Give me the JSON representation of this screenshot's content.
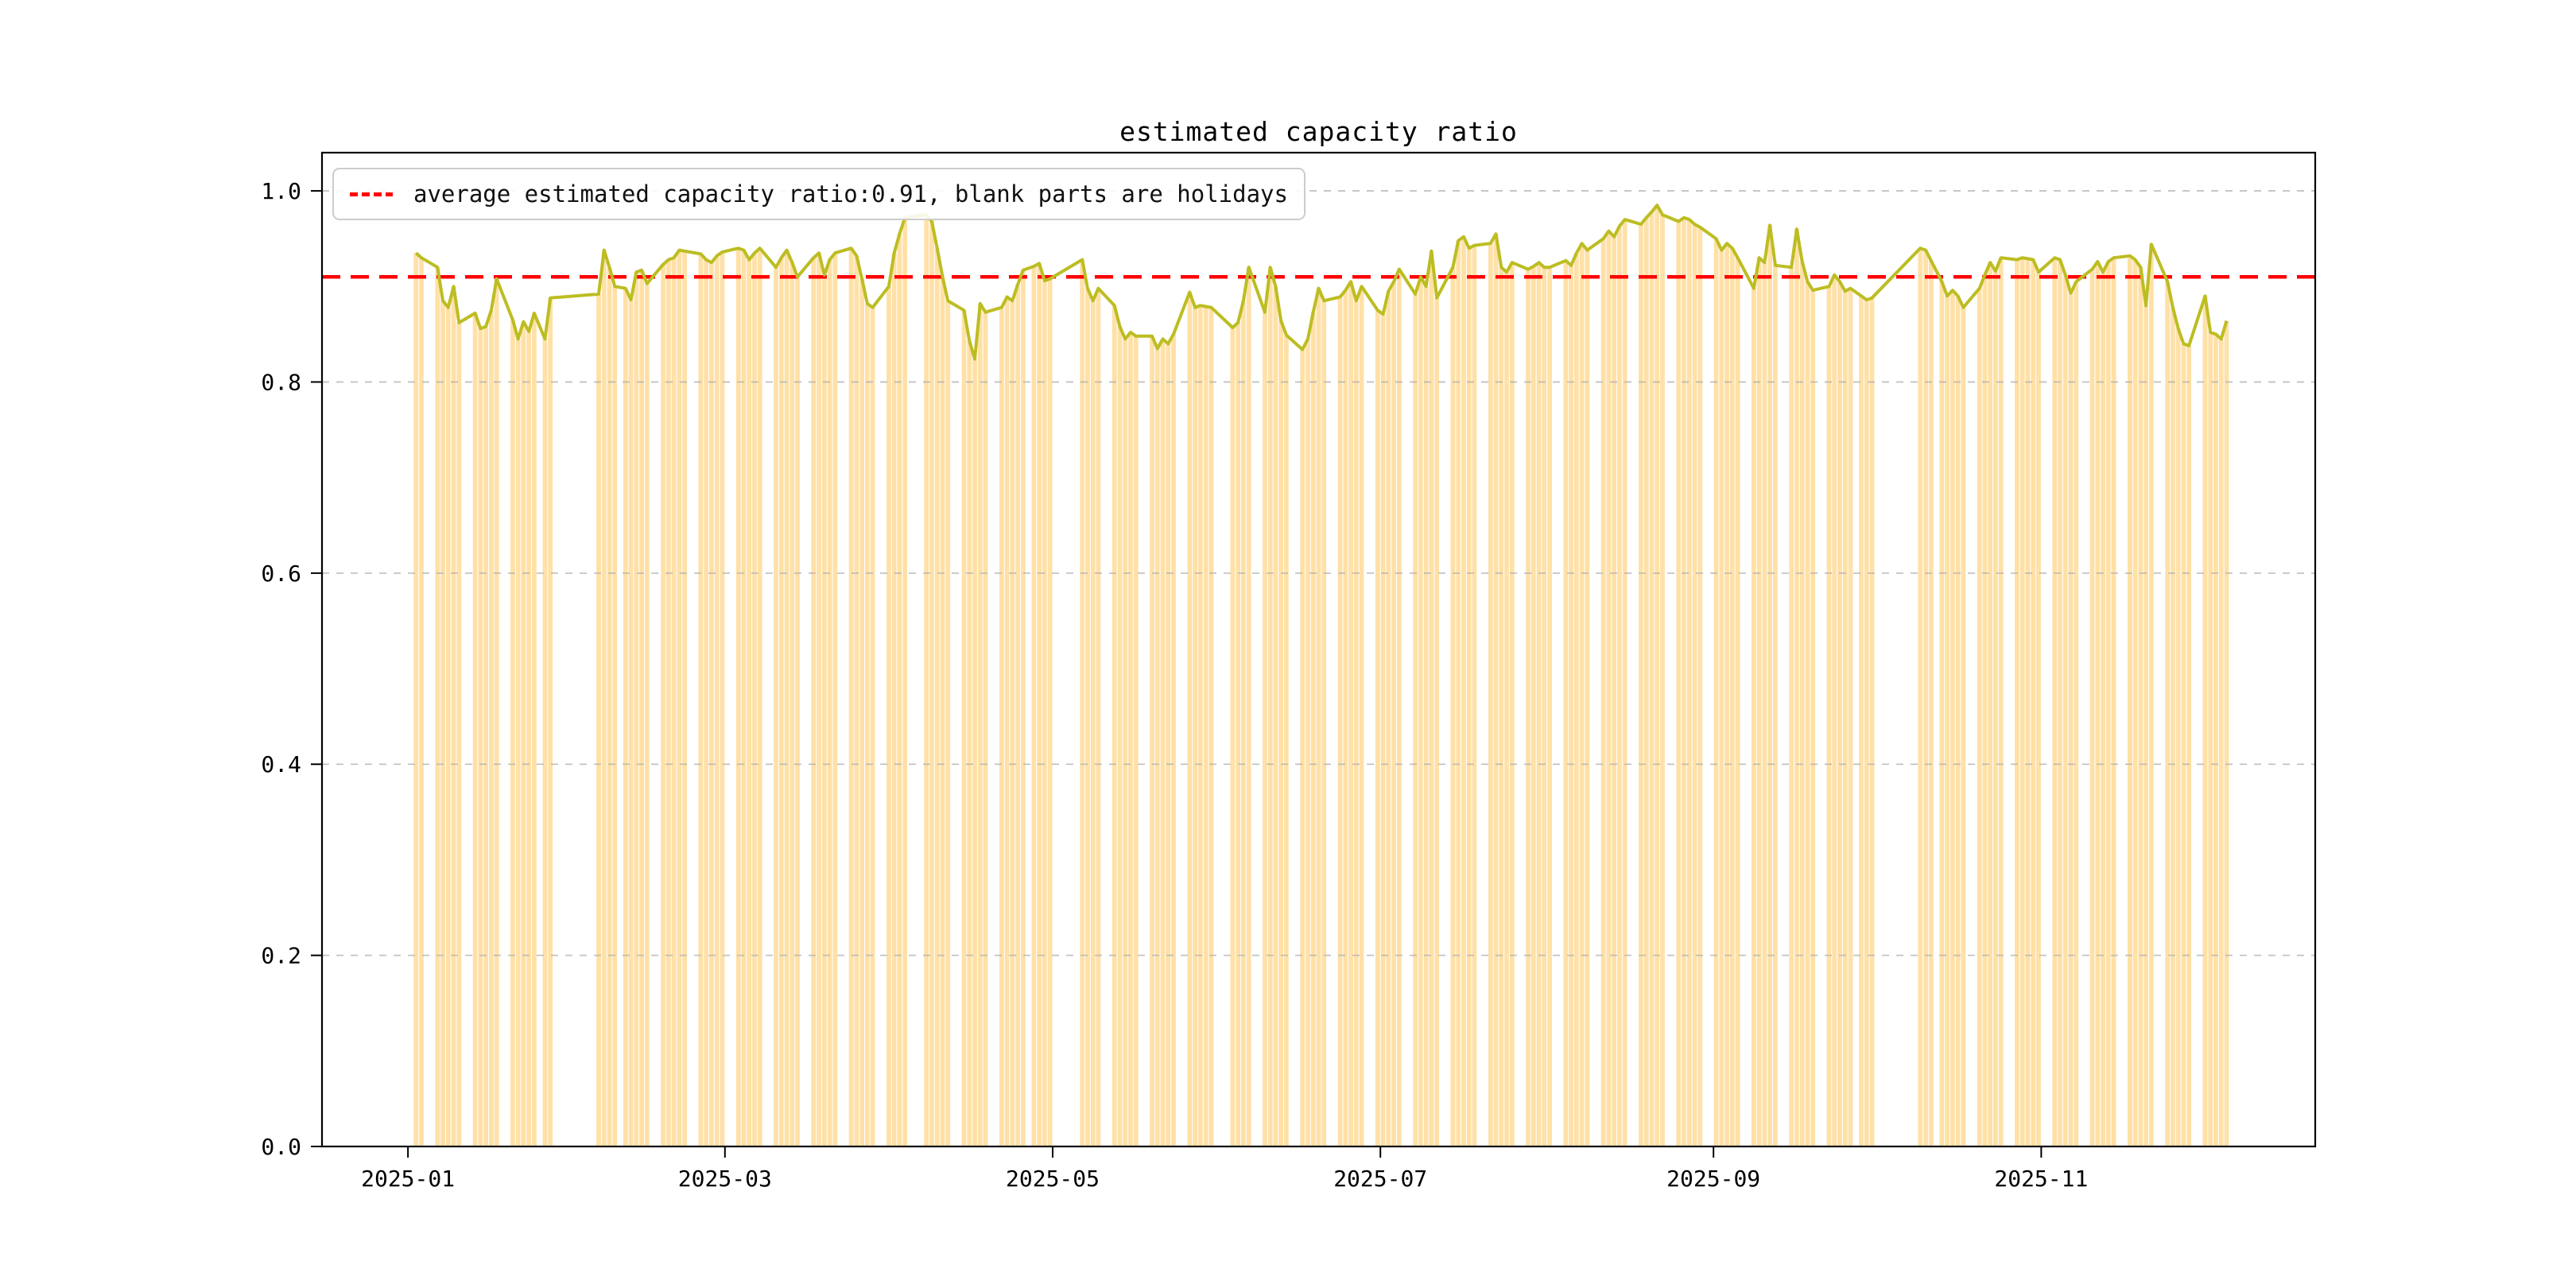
{
  "chart_data": {
    "type": "bar+line",
    "title": "estimated capacity ratio",
    "legend_label": "average estimated capacity ratio:0.91, blank parts are holidays",
    "average": 0.91,
    "ylim": [
      0.0,
      1.04
    ],
    "y_ticks": [
      0.0,
      0.2,
      0.4,
      0.6,
      0.8,
      1.0
    ],
    "x_tick_labels": [
      "2025-01",
      "2025-03",
      "2025-05",
      "2025-07",
      "2025-09",
      "2025-11"
    ],
    "x_range": [
      "2024-12-16",
      "2025-12-22"
    ],
    "grid": "dashed horizontal",
    "legend_position": "upper left",
    "colors": {
      "bar": "#ffe0a6",
      "line": "#bcbd22",
      "average": "#ff0000",
      "grid": "#b0b0b0"
    },
    "holiday_blanks": [
      "2025-01-01",
      "2025-01-28/2025-02-04",
      "2025-04-04/2025-04-06",
      "2025-05-01/2025-05-05",
      "2025-05-31/2025-06-02",
      "2025-10-01/2025-10-08"
    ],
    "dates": [
      "2025-01-02",
      "2025-01-03",
      "2025-01-06",
      "2025-01-07",
      "2025-01-08",
      "2025-01-09",
      "2025-01-10",
      "2025-01-13",
      "2025-01-14",
      "2025-01-15",
      "2025-01-16",
      "2025-01-17",
      "2025-01-20",
      "2025-01-21",
      "2025-01-22",
      "2025-01-23",
      "2025-01-24",
      "2025-01-26",
      "2025-01-27",
      "2025-02-05",
      "2025-02-06",
      "2025-02-07",
      "2025-02-08",
      "2025-02-10",
      "2025-02-11",
      "2025-02-12",
      "2025-02-13",
      "2025-02-14",
      "2025-02-17",
      "2025-02-18",
      "2025-02-19",
      "2025-02-20",
      "2025-02-21",
      "2025-02-24",
      "2025-02-25",
      "2025-02-26",
      "2025-02-27",
      "2025-02-28",
      "2025-03-03",
      "2025-03-04",
      "2025-03-05",
      "2025-03-06",
      "2025-03-07",
      "2025-03-10",
      "2025-03-11",
      "2025-03-12",
      "2025-03-13",
      "2025-03-14",
      "2025-03-17",
      "2025-03-18",
      "2025-03-19",
      "2025-03-20",
      "2025-03-21",
      "2025-03-24",
      "2025-03-25",
      "2025-03-26",
      "2025-03-27",
      "2025-03-28",
      "2025-03-31",
      "2025-04-01",
      "2025-04-02",
      "2025-04-03",
      "2025-04-07",
      "2025-04-08",
      "2025-04-09",
      "2025-04-10",
      "2025-04-11",
      "2025-04-14",
      "2025-04-15",
      "2025-04-16",
      "2025-04-17",
      "2025-04-18",
      "2025-04-21",
      "2025-04-22",
      "2025-04-23",
      "2025-04-24",
      "2025-04-25",
      "2025-04-27",
      "2025-04-28",
      "2025-04-29",
      "2025-04-30",
      "2025-05-06",
      "2025-05-07",
      "2025-05-08",
      "2025-05-09",
      "2025-05-12",
      "2025-05-13",
      "2025-05-14",
      "2025-05-15",
      "2025-05-16",
      "2025-05-19",
      "2025-05-20",
      "2025-05-21",
      "2025-05-22",
      "2025-05-23",
      "2025-05-26",
      "2025-05-27",
      "2025-05-28",
      "2025-05-29",
      "2025-05-30",
      "2025-06-03",
      "2025-06-04",
      "2025-06-05",
      "2025-06-06",
      "2025-06-09",
      "2025-06-10",
      "2025-06-11",
      "2025-06-12",
      "2025-06-13",
      "2025-06-16",
      "2025-06-17",
      "2025-06-18",
      "2025-06-19",
      "2025-06-20",
      "2025-06-23",
      "2025-06-24",
      "2025-06-25",
      "2025-06-26",
      "2025-06-27",
      "2025-06-30",
      "2025-07-01",
      "2025-07-02",
      "2025-07-03",
      "2025-07-04",
      "2025-07-07",
      "2025-07-08",
      "2025-07-09",
      "2025-07-10",
      "2025-07-11",
      "2025-07-14",
      "2025-07-15",
      "2025-07-16",
      "2025-07-17",
      "2025-07-18",
      "2025-07-21",
      "2025-07-22",
      "2025-07-23",
      "2025-07-24",
      "2025-07-25",
      "2025-07-28",
      "2025-07-29",
      "2025-07-30",
      "2025-07-31",
      "2025-08-01",
      "2025-08-04",
      "2025-08-05",
      "2025-08-06",
      "2025-08-07",
      "2025-08-08",
      "2025-08-11",
      "2025-08-12",
      "2025-08-13",
      "2025-08-14",
      "2025-08-15",
      "2025-08-18",
      "2025-08-19",
      "2025-08-20",
      "2025-08-21",
      "2025-08-22",
      "2025-08-25",
      "2025-08-26",
      "2025-08-27",
      "2025-08-28",
      "2025-08-29",
      "2025-09-01",
      "2025-09-02",
      "2025-09-03",
      "2025-09-04",
      "2025-09-05",
      "2025-09-08",
      "2025-09-09",
      "2025-09-10",
      "2025-09-11",
      "2025-09-12",
      "2025-09-15",
      "2025-09-16",
      "2025-09-17",
      "2025-09-18",
      "2025-09-19",
      "2025-09-22",
      "2025-09-23",
      "2025-09-24",
      "2025-09-25",
      "2025-09-26",
      "2025-09-28",
      "2025-09-29",
      "2025-09-30",
      "2025-10-09",
      "2025-10-10",
      "2025-10-11",
      "2025-10-13",
      "2025-10-14",
      "2025-10-15",
      "2025-10-16",
      "2025-10-17",
      "2025-10-20",
      "2025-10-21",
      "2025-10-22",
      "2025-10-23",
      "2025-10-24",
      "2025-10-27",
      "2025-10-28",
      "2025-10-29",
      "2025-10-30",
      "2025-10-31",
      "2025-11-03",
      "2025-11-04",
      "2025-11-05",
      "2025-11-06",
      "2025-11-07",
      "2025-11-10",
      "2025-11-11",
      "2025-11-12",
      "2025-11-13",
      "2025-11-14",
      "2025-11-17",
      "2025-11-18",
      "2025-11-19",
      "2025-11-20",
      "2025-11-21",
      "2025-11-24",
      "2025-11-25",
      "2025-11-26",
      "2025-11-27",
      "2025-11-28",
      "2025-12-01",
      "2025-12-02",
      "2025-12-03",
      "2025-12-04",
      "2025-12-05"
    ],
    "values": [
      0.935,
      0.93,
      0.92,
      0.885,
      0.878,
      0.9,
      0.862,
      0.872,
      0.856,
      0.858,
      0.875,
      0.908,
      0.865,
      0.845,
      0.863,
      0.853,
      0.872,
      0.845,
      0.888,
      0.892,
      0.938,
      0.92,
      0.9,
      0.898,
      0.886,
      0.915,
      0.917,
      0.903,
      0.923,
      0.928,
      0.93,
      0.938,
      0.937,
      0.934,
      0.928,
      0.925,
      0.932,
      0.936,
      0.94,
      0.938,
      0.928,
      0.935,
      0.94,
      0.92,
      0.93,
      0.938,
      0.925,
      0.91,
      0.93,
      0.935,
      0.912,
      0.928,
      0.935,
      0.94,
      0.932,
      0.908,
      0.882,
      0.878,
      0.9,
      0.935,
      0.955,
      0.972,
      0.975,
      0.968,
      0.94,
      0.91,
      0.885,
      0.875,
      0.843,
      0.824,
      0.882,
      0.873,
      0.878,
      0.889,
      0.885,
      0.902,
      0.917,
      0.921,
      0.924,
      0.906,
      0.908,
      0.928,
      0.898,
      0.885,
      0.898,
      0.88,
      0.858,
      0.845,
      0.852,
      0.848,
      0.848,
      0.835,
      0.845,
      0.84,
      0.85,
      0.894,
      0.878,
      0.88,
      0.879,
      0.878,
      0.857,
      0.862,
      0.885,
      0.92,
      0.873,
      0.92,
      0.9,
      0.864,
      0.849,
      0.834,
      0.845,
      0.873,
      0.898,
      0.885,
      0.889,
      0.896,
      0.905,
      0.885,
      0.9,
      0.875,
      0.871,
      0.895,
      0.905,
      0.918,
      0.892,
      0.91,
      0.9,
      0.937,
      0.888,
      0.92,
      0.948,
      0.952,
      0.94,
      0.943,
      0.945,
      0.955,
      0.92,
      0.915,
      0.925,
      0.918,
      0.921,
      0.925,
      0.92,
      0.92,
      0.927,
      0.922,
      0.935,
      0.945,
      0.938,
      0.95,
      0.958,
      0.952,
      0.963,
      0.97,
      0.965,
      0.972,
      0.978,
      0.985,
      0.975,
      0.968,
      0.972,
      0.97,
      0.965,
      0.962,
      0.95,
      0.938,
      0.945,
      0.94,
      0.93,
      0.898,
      0.93,
      0.925,
      0.964,
      0.922,
      0.92,
      0.96,
      0.926,
      0.905,
      0.896,
      0.9,
      0.912,
      0.905,
      0.895,
      0.898,
      0.89,
      0.886,
      0.888,
      0.94,
      0.938,
      0.927,
      0.905,
      0.89,
      0.896,
      0.89,
      0.878,
      0.898,
      0.912,
      0.925,
      0.916,
      0.93,
      0.928,
      0.93,
      0.929,
      0.928,
      0.915,
      0.93,
      0.928,
      0.912,
      0.893,
      0.905,
      0.918,
      0.926,
      0.915,
      0.926,
      0.93,
      0.932,
      0.928,
      0.92,
      0.88,
      0.944,
      0.905,
      0.878,
      0.856,
      0.84,
      0.838,
      0.89,
      0.852,
      0.85,
      0.845,
      0.864
    ]
  }
}
